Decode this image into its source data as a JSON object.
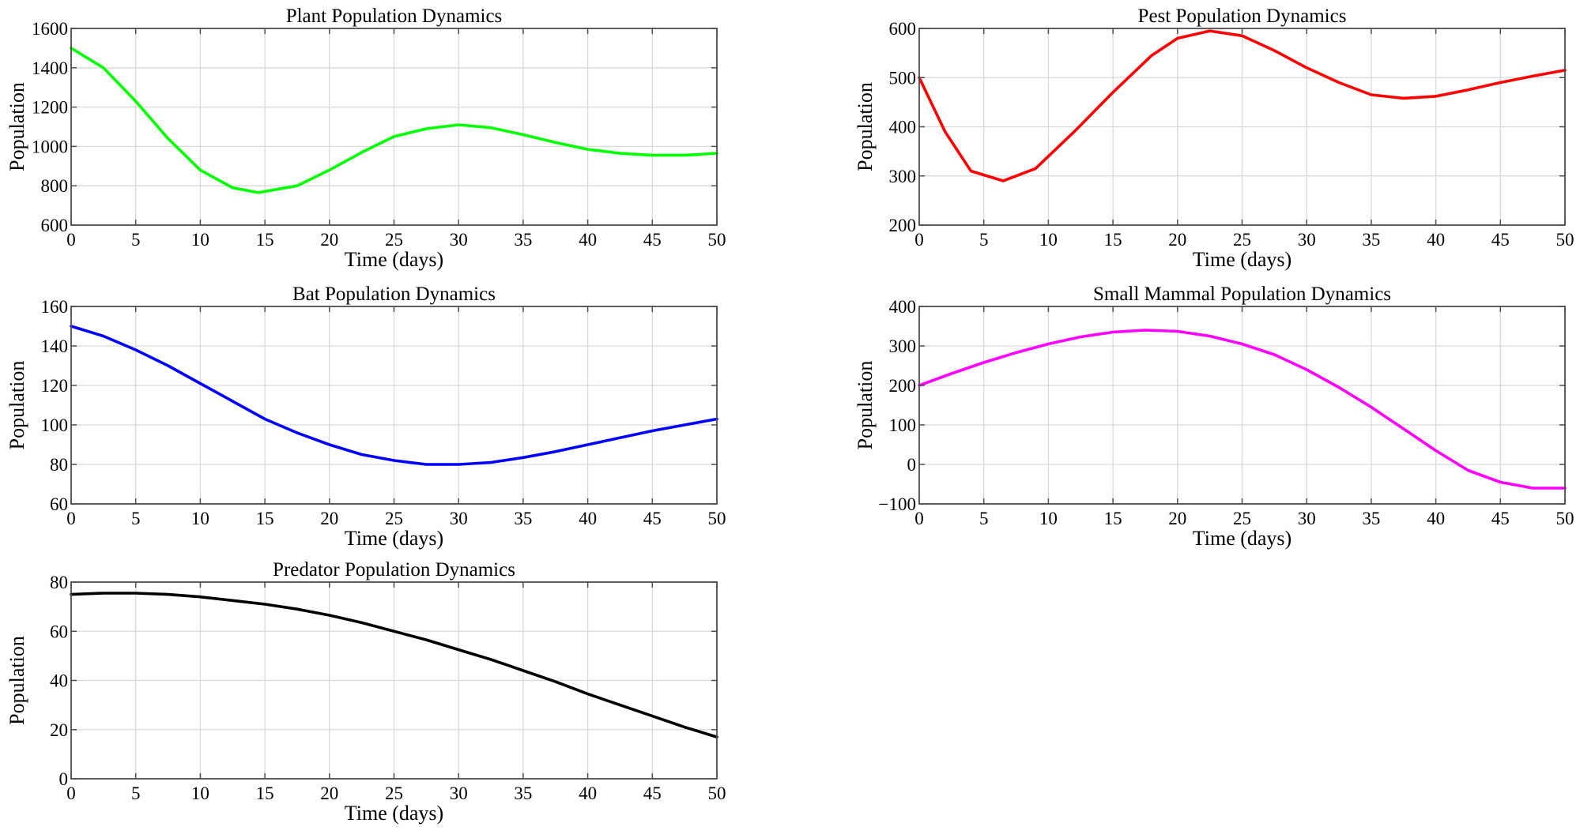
{
  "chart_data": [
    {
      "type": "line",
      "title": "Plant Population Dynamics",
      "xlabel": "Time  (days)",
      "ylabel": "Population",
      "xlim": [
        0,
        50
      ],
      "ylim": [
        600,
        1600
      ],
      "xticks": [
        "0",
        "5",
        "10",
        "15",
        "20",
        "25",
        "30",
        "35",
        "40",
        "45",
        "50"
      ],
      "yticks": [
        "600",
        "800",
        "1000",
        "1200",
        "1400",
        "1600"
      ],
      "grid": true,
      "color": "#00ff00",
      "series": [
        {
          "x": [
            0,
            2.5,
            5,
            7.5,
            10,
            12.5,
            14.5,
            17.5,
            20,
            22.5,
            25,
            27.5,
            30,
            32.5,
            35,
            37.5,
            40,
            42.5,
            45,
            47.5,
            50
          ],
          "y": [
            1500,
            1400,
            1230,
            1040,
            880,
            790,
            765,
            800,
            880,
            970,
            1050,
            1090,
            1110,
            1095,
            1060,
            1020,
            985,
            965,
            955,
            955,
            965
          ]
        }
      ]
    },
    {
      "type": "line",
      "title": "Pest Population Dynamics",
      "xlabel": "Time  (days)",
      "ylabel": "Population",
      "xlim": [
        0,
        50
      ],
      "ylim": [
        200,
        600
      ],
      "xticks": [
        "0",
        "5",
        "10",
        "15",
        "20",
        "25",
        "30",
        "35",
        "40",
        "45",
        "50"
      ],
      "yticks": [
        "200",
        "300",
        "400",
        "500",
        "600"
      ],
      "grid": true,
      "color": "#ff0000",
      "series": [
        {
          "x": [
            0,
            2,
            4,
            6.5,
            9,
            12,
            15,
            18,
            20,
            22.5,
            25,
            27.5,
            30,
            32.5,
            35,
            37.5,
            40,
            42.5,
            45,
            47.5,
            50
          ],
          "y": [
            500,
            390,
            310,
            290,
            315,
            390,
            470,
            545,
            580,
            595,
            585,
            555,
            520,
            490,
            465,
            458,
            462,
            475,
            490,
            503,
            515
          ]
        }
      ]
    },
    {
      "type": "line",
      "title": "Bat Population Dynamics",
      "xlabel": "Time  (days)",
      "ylabel": "Population",
      "xlim": [
        0,
        50
      ],
      "ylim": [
        60,
        160
      ],
      "xticks": [
        "0",
        "5",
        "10",
        "15",
        "20",
        "25",
        "30",
        "35",
        "40",
        "45",
        "50"
      ],
      "yticks": [
        "60",
        "80",
        "100",
        "120",
        "140",
        "160"
      ],
      "grid": true,
      "color": "#0000ff",
      "series": [
        {
          "x": [
            0,
            2.5,
            5,
            7.5,
            10,
            12.5,
            15,
            17.5,
            20,
            22.5,
            25,
            27.5,
            30,
            32.5,
            35,
            37.5,
            40,
            42.5,
            45,
            47.5,
            50
          ],
          "y": [
            150,
            145,
            138,
            130,
            121,
            112,
            103,
            96,
            90,
            85,
            82,
            80,
            80,
            81,
            83.5,
            86.5,
            90,
            93.5,
            97,
            100,
            103
          ]
        }
      ]
    },
    {
      "type": "line",
      "title": "Small Mammal Population Dynamics",
      "xlabel": "Time  (days)",
      "ylabel": "Population",
      "xlim": [
        0,
        50
      ],
      "ylim": [
        -100,
        400
      ],
      "xticks": [
        "0",
        "5",
        "10",
        "15",
        "20",
        "25",
        "30",
        "35",
        "40",
        "45",
        "50"
      ],
      "yticks": [
        "−100",
        "0",
        "100",
        "200",
        "300",
        "400"
      ],
      "grid": true,
      "color": "#ff00ff",
      "series": [
        {
          "x": [
            0,
            2.5,
            5,
            7.5,
            10,
            12.5,
            15,
            17.5,
            20,
            22.5,
            25,
            27.5,
            30,
            32.5,
            35,
            37.5,
            40,
            42.5,
            45,
            47.5,
            50
          ],
          "y": [
            200,
            230,
            258,
            283,
            305,
            323,
            335,
            340,
            337,
            325,
            305,
            278,
            240,
            195,
            145,
            90,
            35,
            -15,
            -45,
            -60,
            -60
          ]
        }
      ]
    },
    {
      "type": "line",
      "title": "Predator Population Dynamics",
      "xlabel": "Time  (days)",
      "ylabel": "Population",
      "xlim": [
        0,
        50
      ],
      "ylim": [
        0,
        80
      ],
      "xticks": [
        "0",
        "5",
        "10",
        "15",
        "20",
        "25",
        "30",
        "35",
        "40",
        "45",
        "50"
      ],
      "yticks": [
        "0",
        "20",
        "40",
        "60",
        "80"
      ],
      "grid": true,
      "color": "#000000",
      "series": [
        {
          "x": [
            0,
            2.5,
            5,
            7.5,
            10,
            12.5,
            15,
            17.5,
            20,
            22.5,
            25,
            27.5,
            30,
            32.5,
            35,
            37.5,
            40,
            42.5,
            45,
            47.5,
            50
          ],
          "y": [
            75,
            75.5,
            75.5,
            75,
            74,
            72.5,
            71,
            69,
            66.5,
            63.5,
            60,
            56.5,
            52.5,
            48.5,
            44,
            39.5,
            34.5,
            30,
            25.5,
            21,
            17
          ]
        }
      ]
    }
  ]
}
